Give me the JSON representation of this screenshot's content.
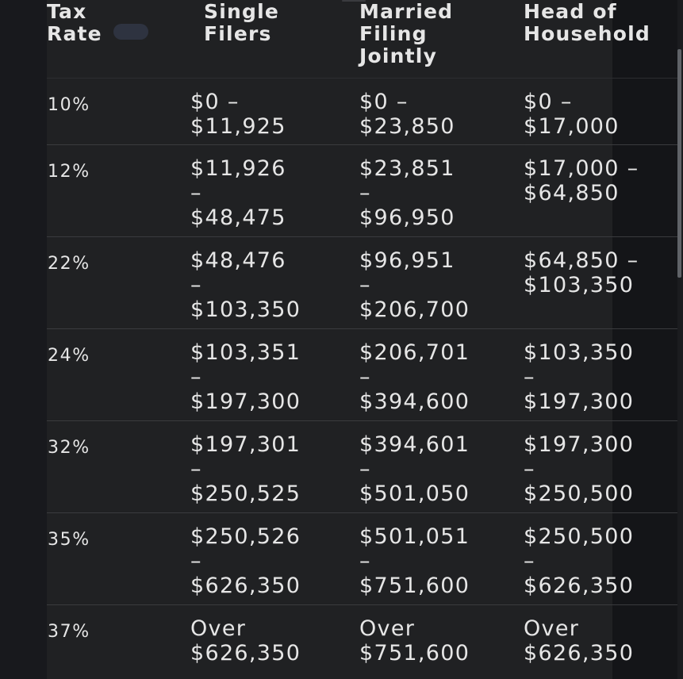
{
  "table": {
    "headers": {
      "rate": [
        "Tax",
        "Rate"
      ],
      "single": [
        "Single",
        "Filers"
      ],
      "married": [
        "Married",
        "Filing",
        "Jointly"
      ],
      "hoh": [
        "Head of",
        "Household"
      ]
    },
    "rows": [
      {
        "rate": "10%",
        "single": [
          "$0 –",
          "$11,925"
        ],
        "married": [
          "$0 –",
          "$23,850"
        ],
        "hoh": [
          "$0 –",
          "$17,000"
        ]
      },
      {
        "rate": "12%",
        "single": [
          "$11,926",
          "–",
          "$48,475"
        ],
        "married": [
          "$23,851",
          "–",
          "$96,950"
        ],
        "hoh": [
          "$17,000 –",
          "$64,850"
        ]
      },
      {
        "rate": "22%",
        "single": [
          "$48,476",
          "–",
          "$103,350"
        ],
        "married": [
          "$96,951",
          "–",
          "$206,700"
        ],
        "hoh": [
          "$64,850 –",
          "$103,350"
        ]
      },
      {
        "rate": "24%",
        "single": [
          "$103,351",
          "–",
          "$197,300"
        ],
        "married": [
          "$206,701",
          "–",
          "$394,600"
        ],
        "hoh": [
          "$103,350",
          "–",
          "$197,300"
        ]
      },
      {
        "rate": "32%",
        "single": [
          "$197,301",
          "–",
          "$250,525"
        ],
        "married": [
          "$394,601",
          "–",
          "$501,050"
        ],
        "hoh": [
          "$197,300",
          "–",
          "$250,500"
        ]
      },
      {
        "rate": "35%",
        "single": [
          "$250,526",
          "–",
          "$626,350"
        ],
        "married": [
          "$501,051",
          "–",
          "$751,600"
        ],
        "hoh": [
          "$250,500",
          "–",
          "$626,350"
        ]
      },
      {
        "rate": "37%",
        "single": [
          "Over",
          "$626,350"
        ],
        "married": [
          "Over",
          "$751,600"
        ],
        "hoh": [
          "Over",
          "$626,350"
        ]
      }
    ]
  },
  "colors": {
    "page_background": "#17181b",
    "table_background": "#202123",
    "text": "#e6e6e6",
    "divider": "#3a3b3e",
    "scrollbar_thumb": "#606368"
  }
}
